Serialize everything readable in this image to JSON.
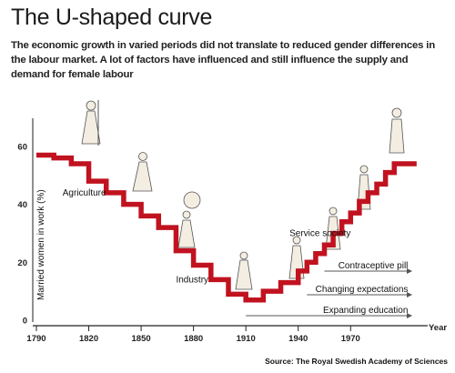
{
  "title": "The U-shaped curve",
  "subtitle": "The economic growth in varied periods did not translate to reduced gender differences in the labour market. A lot of factors have influenced and still influence the supply and demand for female labour",
  "source": "Source: The Royal Swedish Academy of Sciences",
  "colors": {
    "curve": "#c1121f",
    "arrows": "#555555",
    "axis": "#222222"
  },
  "chart_data": {
    "type": "line",
    "title": "The U-shaped curve",
    "xlabel": "Year",
    "ylabel": "Married women in work (%)",
    "xlim": [
      1790,
      2010
    ],
    "ylim": [
      0,
      65
    ],
    "x_ticks": [
      1790,
      1820,
      1850,
      1880,
      1910,
      1940,
      1970
    ],
    "y_ticks": [
      0,
      20,
      40,
      60
    ],
    "grid": false,
    "series": [
      {
        "type": "step",
        "x": [
          1790,
          1800,
          1810,
          1820,
          1830,
          1840,
          1850,
          1860,
          1870,
          1880,
          1890,
          1900,
          1910,
          1920,
          1930,
          1940,
          1945,
          1950,
          1955,
          1960,
          1965,
          1970,
          1975,
          1980,
          1985,
          1990,
          1995,
          2000
        ],
        "values": [
          57,
          56,
          54,
          48,
          44,
          40,
          36,
          32,
          24,
          19,
          14,
          9,
          7,
          10,
          13,
          17,
          20,
          23,
          26,
          30,
          34,
          37,
          41,
          44,
          47,
          51,
          54,
          54
        ]
      }
    ],
    "labels": [
      {
        "text": "Agriculture",
        "x": 1805,
        "y": 43
      },
      {
        "text": "Industry",
        "x": 1870,
        "y": 13
      },
      {
        "text": "Service society",
        "x": 1935,
        "y": 29
      }
    ],
    "arrows": [
      {
        "text": "Contraceptive pill",
        "from": 1955,
        "to": 2005
      },
      {
        "text": "Changing expectations",
        "from": 1945,
        "to": 2005
      },
      {
        "text": "Expanding education",
        "from": 1910,
        "to": 2005
      }
    ]
  }
}
